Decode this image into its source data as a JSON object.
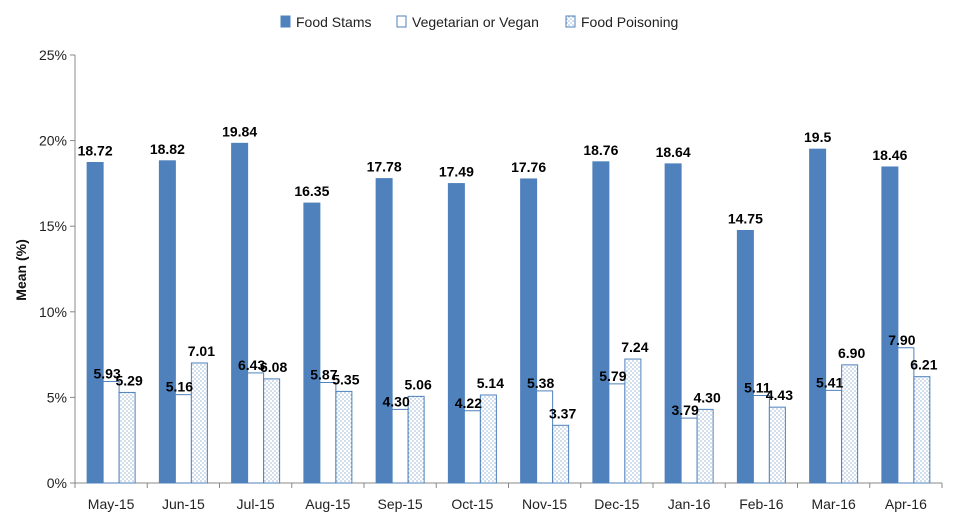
{
  "chart_data": {
    "type": "bar",
    "title": "",
    "xlabel": "",
    "ylabel": "Mean (%)",
    "ylim": [
      0,
      25
    ],
    "yticks": [
      "0%",
      "5%",
      "10%",
      "15%",
      "20%",
      "25%"
    ],
    "ytick_values": [
      0,
      5,
      10,
      15,
      20,
      25
    ],
    "grid": false,
    "legend_position": "top-center",
    "categories": [
      "May-15",
      "Jun-15",
      "Jul-15",
      "Aug-15",
      "Sep-15",
      "Oct-15",
      "Nov-15",
      "Dec-15",
      "Jan-16",
      "Feb-16",
      "Mar-16",
      "Apr-16"
    ],
    "series": [
      {
        "name": "Food Stams",
        "color": "#4f81bd",
        "style": "solid",
        "values": [
          18.72,
          18.82,
          19.84,
          16.35,
          17.78,
          17.49,
          17.76,
          18.76,
          18.64,
          14.75,
          19.5,
          18.46
        ],
        "labels": [
          "18.72",
          "18.82",
          "19.84",
          "16.35",
          "17.78",
          "17.49",
          "17.76",
          "18.76",
          "18.64",
          "14.75",
          "19.5",
          "18.46"
        ]
      },
      {
        "name": "Vegetarian or Vegan",
        "color": "#4f81bd",
        "style": "outline",
        "values": [
          5.93,
          5.16,
          6.43,
          5.87,
          4.3,
          4.22,
          5.38,
          5.79,
          3.79,
          5.11,
          5.41,
          7.9
        ],
        "labels": [
          "5.93",
          "5.16",
          "6.43",
          "5.87",
          "4.30",
          "4.22",
          "5.38",
          "5.79",
          "3.79",
          "5.11",
          "5.41",
          "7.90"
        ]
      },
      {
        "name": "Food Poisoning",
        "color": "#4f81bd",
        "style": "dotted",
        "values": [
          5.29,
          7.01,
          6.08,
          5.35,
          5.06,
          5.14,
          3.37,
          7.24,
          4.3,
          4.43,
          6.9,
          6.21
        ],
        "labels": [
          "5.29",
          "7.01",
          "6.08",
          "5.35",
          "5.06",
          "5.14",
          "3.37",
          "7.24",
          "4.30",
          "4.43",
          "6.90",
          "6.21"
        ]
      }
    ]
  }
}
